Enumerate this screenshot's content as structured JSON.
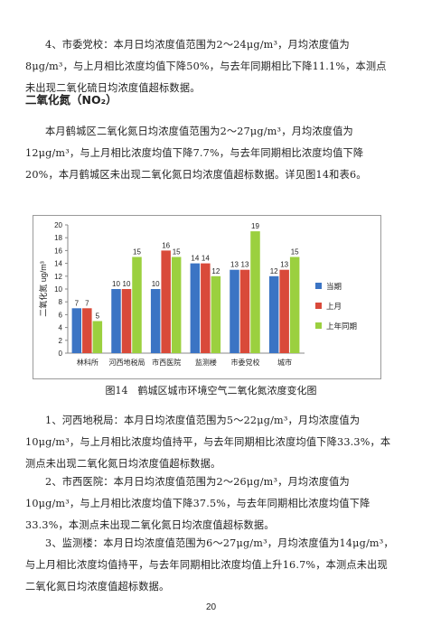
{
  "paragraphs_top": {
    "p1": "4、市委党校：本月日均浓度值范围为2～24μg/m³，月均浓度值为8μg/m³，与上月相比浓度均值下降50%，与去年同期相比下降11.1%，本测点未出现二氧化硫日均浓度值超标数据。"
  },
  "section_heading": "二氧化氮（NO₂）",
  "paragraph_intro": "本月鹤城区二氧化氮日均浓度值范围为2～27μg/m³，月均浓度值为12μg/m³，与上月相比浓度均值下降7.7%，与去年同期相比浓度均值下降20%，本月鹤城区未出现二氧化氮日均浓度值超标数据。详见图14和表6。",
  "figure_caption": "图14　鹤城区城市环境空气二氧化氮浓度变化图",
  "paragraphs_bottom": {
    "p1": "1、河西地税局：本月日均浓度值范围为5～22μg/m³，月均浓度值为10μg/m³，与上月相比浓度均值持平，与去年同期相比浓度均值下降33.3%，本测点未出现二氧化氮日均浓度值超标数据。",
    "p2": "2、市西医院：本月日均浓度值范围为2～26μg/m³，月均浓度值为10μg/m³，与上月相比浓度均值下降37.5%，与去年同期相比浓度均值下降33.3%，本测点未出现二氧化氮日均浓度值超标数据。",
    "p3": "3、监测楼：本月日均浓度值范围为6～27μg/m³，月均浓度值为14μg/m³，与上月相比浓度均值持平，与去年同期相比浓度均值上升16.7%，本测点未出现二氧化氮日均浓度值超标数据。"
  },
  "page_number": "20",
  "chart_data": {
    "type": "bar",
    "categories": [
      "林科所",
      "河西地税局",
      "市西医院",
      "监测楼",
      "市委党校",
      "城市"
    ],
    "series": [
      {
        "name": "当期",
        "values": [
          7,
          10,
          10,
          14,
          13,
          12
        ],
        "color": "#3b74c4"
      },
      {
        "name": "上月",
        "values": [
          7,
          10,
          16,
          14,
          13,
          13
        ],
        "color": "#d94a3a"
      },
      {
        "name": "上年同期",
        "values": [
          5,
          15,
          15,
          12,
          19,
          15
        ],
        "color": "#9bd03f"
      }
    ],
    "ylabel": "二氧化氮 ug/m³",
    "ylim": [
      0,
      20
    ],
    "yticks": [
      "0",
      "2",
      "4",
      "6",
      "8",
      "10",
      "12",
      "14",
      "16",
      "18",
      "20"
    ],
    "grid": false,
    "legend_position": "right"
  }
}
